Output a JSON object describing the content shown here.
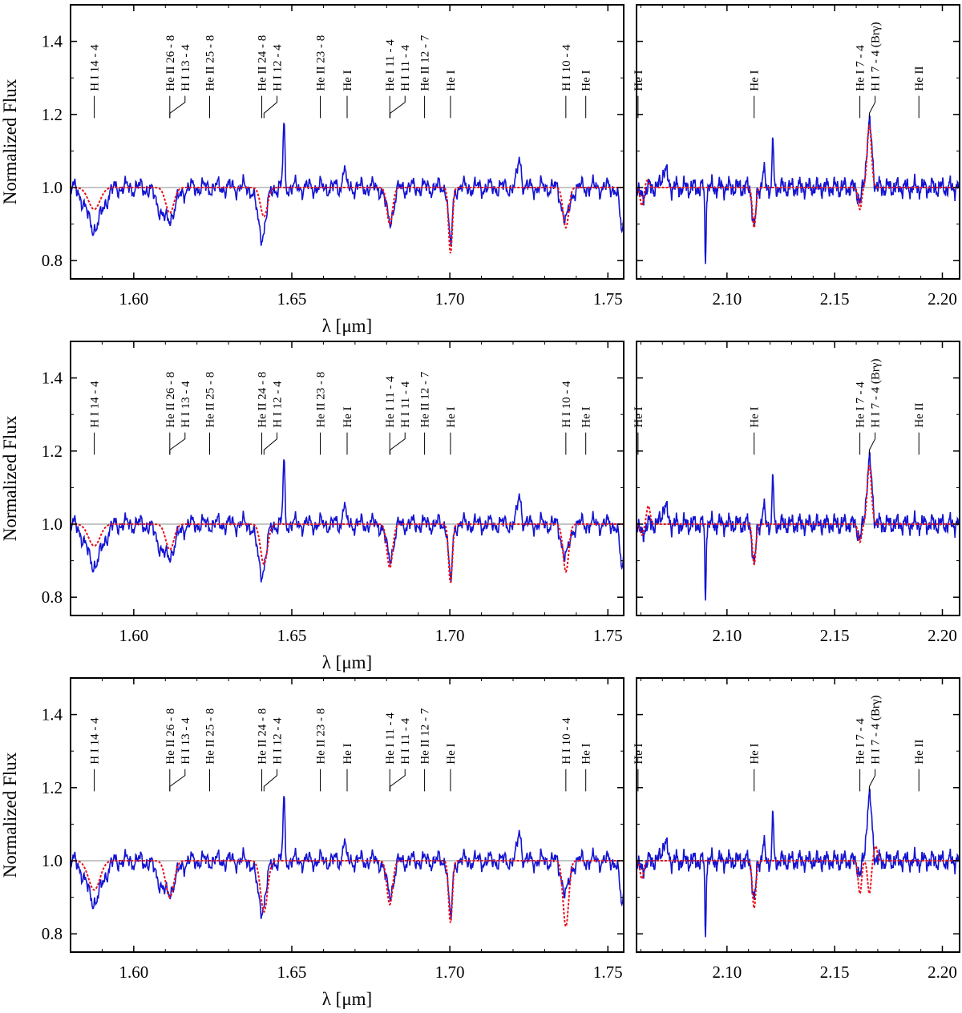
{
  "colors": {
    "observed": "#1414d2",
    "model": "#e8141e",
    "frame": "#000000",
    "reference": "#8c8c8c"
  },
  "axis_titles": {
    "ylabel": "Normalized Flux",
    "xlabel": "λ [μm]"
  },
  "line_labels_h": [
    {
      "x": 1.5875,
      "text": "H I 14 - 4"
    },
    {
      "x": 1.6114,
      "text": "He II 26 - 8"
    },
    {
      "x": 1.6114,
      "text": "H I 13 - 4"
    },
    {
      "x": 1.624,
      "text": "He II 25 - 8"
    },
    {
      "x": 1.6405,
      "text": "He II 24 - 8"
    },
    {
      "x": 1.6412,
      "text": "H I 12 - 4"
    },
    {
      "x": 1.659,
      "text": "He II 23 - 8"
    },
    {
      "x": 1.6675,
      "text": "He I"
    },
    {
      "x": 1.681,
      "text": "He I 11 - 4"
    },
    {
      "x": 1.6811,
      "text": "H I 11 - 4"
    },
    {
      "x": 1.692,
      "text": "He II 12 - 7"
    },
    {
      "x": 1.7002,
      "text": "He I"
    },
    {
      "x": 1.7367,
      "text": "H I 10 - 4"
    },
    {
      "x": 1.743,
      "text": "He I"
    }
  ],
  "line_labels_k": [
    {
      "x": 2.0587,
      "text": "He I"
    },
    {
      "x": 2.1126,
      "text": "He I"
    },
    {
      "x": 2.1617,
      "text": "He I 7 - 4"
    },
    {
      "x": 2.1661,
      "text": "H I 7 - 4 (Brγ)"
    },
    {
      "x": 2.1891,
      "text": "He II"
    }
  ],
  "chart_data": [
    {
      "type": "line",
      "panel": "top-left",
      "band": "H",
      "xlabel": "λ [μm]",
      "ylabel": "Normalized Flux",
      "xlim": [
        1.58,
        1.755
      ],
      "ylim": [
        0.75,
        1.5
      ],
      "xticks": [
        "1.60",
        "1.65",
        "1.70",
        "1.75"
      ],
      "yticks": [
        "0.8",
        "1.0",
        "1.2",
        "1.4"
      ],
      "reference_y": 1.0,
      "observed_features": [
        {
          "x": 1.5875,
          "depth": -0.11,
          "width": 0.0025
        },
        {
          "x": 1.6105,
          "depth": -0.09,
          "width": 0.0025
        },
        {
          "x": 1.6405,
          "depth": -0.13,
          "width": 0.0014
        },
        {
          "x": 1.6475,
          "depth": 0.17,
          "width": 0.0003
        },
        {
          "x": 1.6665,
          "depth": 0.06,
          "width": 0.0004
        },
        {
          "x": 1.681,
          "depth": -0.09,
          "width": 0.0012
        },
        {
          "x": 1.7002,
          "depth": -0.16,
          "width": 0.0006
        },
        {
          "x": 1.722,
          "depth": 0.08,
          "width": 0.0006
        },
        {
          "x": 1.7367,
          "depth": -0.09,
          "width": 0.0012
        },
        {
          "x": 1.7545,
          "depth": -0.12,
          "width": 0.0008
        }
      ],
      "model_features": [
        {
          "x": 1.5875,
          "depth": -0.06,
          "width": 0.0018
        },
        {
          "x": 1.6114,
          "depth": -0.07,
          "width": 0.0013
        },
        {
          "x": 1.6412,
          "depth": -0.08,
          "width": 0.0011
        },
        {
          "x": 1.681,
          "depth": -0.1,
          "width": 0.0009
        },
        {
          "x": 1.7002,
          "depth": -0.18,
          "width": 0.0006
        },
        {
          "x": 1.7367,
          "depth": -0.11,
          "width": 0.0009
        }
      ]
    },
    {
      "type": "line",
      "panel": "top-right",
      "band": "K",
      "xlabel": "",
      "ylabel": "",
      "xlim": [
        2.058,
        2.208
      ],
      "ylim": [
        0.75,
        1.5
      ],
      "xticks": [
        "2.10",
        "2.15",
        "2.20"
      ],
      "reference_y": 1.0,
      "observed_features": [
        {
          "x": 2.0605,
          "depth": -0.03,
          "width": 0.001
        },
        {
          "x": 2.071,
          "depth": 0.05,
          "width": 0.0012
        },
        {
          "x": 2.09,
          "depth": -0.2,
          "width": 0.0003
        },
        {
          "x": 2.1126,
          "depth": -0.11,
          "width": 0.0008
        },
        {
          "x": 2.117,
          "depth": 0.04,
          "width": 0.0006
        },
        {
          "x": 2.1213,
          "depth": 0.14,
          "width": 0.0003
        },
        {
          "x": 2.1617,
          "depth": -0.04,
          "width": 0.0008
        },
        {
          "x": 2.1661,
          "depth": 0.17,
          "width": 0.0012
        }
      ],
      "model_features": [
        {
          "x": 2.0605,
          "depth": -0.05,
          "width": 0.0008
        },
        {
          "x": 2.063,
          "depth": 0.02,
          "width": 0.0008
        },
        {
          "x": 2.1126,
          "depth": -0.11,
          "width": 0.0008
        },
        {
          "x": 2.1617,
          "depth": -0.06,
          "width": 0.0008
        },
        {
          "x": 2.1661,
          "depth": 0.17,
          "width": 0.001
        }
      ]
    },
    {
      "type": "line",
      "panel": "middle-left",
      "band": "H",
      "xlabel": "λ [μm]",
      "ylabel": "Normalized Flux",
      "xlim": [
        1.58,
        1.755
      ],
      "ylim": [
        0.75,
        1.5
      ],
      "xticks": [
        "1.60",
        "1.65",
        "1.70",
        "1.75"
      ],
      "yticks": [
        "0.8",
        "1.0",
        "1.2",
        "1.4"
      ],
      "reference_y": 1.0,
      "observed_features": [
        {
          "x": 1.5875,
          "depth": -0.11,
          "width": 0.0025
        },
        {
          "x": 1.6105,
          "depth": -0.09,
          "width": 0.0025
        },
        {
          "x": 1.6405,
          "depth": -0.13,
          "width": 0.0014
        },
        {
          "x": 1.6475,
          "depth": 0.17,
          "width": 0.0003
        },
        {
          "x": 1.6665,
          "depth": 0.06,
          "width": 0.0004
        },
        {
          "x": 1.681,
          "depth": -0.09,
          "width": 0.0012
        },
        {
          "x": 1.7002,
          "depth": -0.16,
          "width": 0.0006
        },
        {
          "x": 1.722,
          "depth": 0.08,
          "width": 0.0006
        },
        {
          "x": 1.7367,
          "depth": -0.09,
          "width": 0.0012
        },
        {
          "x": 1.7545,
          "depth": -0.12,
          "width": 0.0008
        }
      ],
      "model_features": [
        {
          "x": 1.5875,
          "depth": -0.06,
          "width": 0.0018
        },
        {
          "x": 1.6114,
          "depth": -0.07,
          "width": 0.0013
        },
        {
          "x": 1.6412,
          "depth": -0.11,
          "width": 0.0011
        },
        {
          "x": 1.681,
          "depth": -0.12,
          "width": 0.0009
        },
        {
          "x": 1.7002,
          "depth": -0.16,
          "width": 0.0006
        },
        {
          "x": 1.7367,
          "depth": -0.13,
          "width": 0.0009
        }
      ]
    },
    {
      "type": "line",
      "panel": "middle-right",
      "band": "K",
      "xlabel": "",
      "ylabel": "",
      "xlim": [
        2.058,
        2.208
      ],
      "ylim": [
        0.75,
        1.5
      ],
      "xticks": [
        "2.10",
        "2.15",
        "2.20"
      ],
      "reference_y": 1.0,
      "observed_features": [
        {
          "x": 2.0605,
          "depth": -0.03,
          "width": 0.001
        },
        {
          "x": 2.071,
          "depth": 0.05,
          "width": 0.0012
        },
        {
          "x": 2.09,
          "depth": -0.2,
          "width": 0.0003
        },
        {
          "x": 2.1126,
          "depth": -0.11,
          "width": 0.0008
        },
        {
          "x": 2.117,
          "depth": 0.04,
          "width": 0.0006
        },
        {
          "x": 2.1213,
          "depth": 0.14,
          "width": 0.0003
        },
        {
          "x": 2.1617,
          "depth": -0.04,
          "width": 0.0008
        },
        {
          "x": 2.1661,
          "depth": 0.17,
          "width": 0.0012
        }
      ],
      "model_features": [
        {
          "x": 2.0605,
          "depth": -0.03,
          "width": 0.0008
        },
        {
          "x": 2.0635,
          "depth": 0.05,
          "width": 0.0008
        },
        {
          "x": 2.1126,
          "depth": -0.11,
          "width": 0.0008
        },
        {
          "x": 2.1617,
          "depth": -0.05,
          "width": 0.0008
        },
        {
          "x": 2.1661,
          "depth": 0.16,
          "width": 0.001
        }
      ]
    },
    {
      "type": "line",
      "panel": "bottom-left",
      "band": "H",
      "xlabel": "λ [μm]",
      "ylabel": "Normalized Flux",
      "xlim": [
        1.58,
        1.755
      ],
      "ylim": [
        0.75,
        1.5
      ],
      "xticks": [
        "1.60",
        "1.65",
        "1.70",
        "1.75"
      ],
      "yticks": [
        "0.8",
        "1.0",
        "1.2",
        "1.4"
      ],
      "reference_y": 1.0,
      "observed_features": [
        {
          "x": 1.5875,
          "depth": -0.11,
          "width": 0.0025
        },
        {
          "x": 1.6105,
          "depth": -0.09,
          "width": 0.0025
        },
        {
          "x": 1.6405,
          "depth": -0.13,
          "width": 0.0014
        },
        {
          "x": 1.6475,
          "depth": 0.17,
          "width": 0.0003
        },
        {
          "x": 1.6665,
          "depth": 0.06,
          "width": 0.0004
        },
        {
          "x": 1.681,
          "depth": -0.09,
          "width": 0.0012
        },
        {
          "x": 1.7002,
          "depth": -0.16,
          "width": 0.0006
        },
        {
          "x": 1.722,
          "depth": 0.08,
          "width": 0.0006
        },
        {
          "x": 1.7367,
          "depth": -0.09,
          "width": 0.0012
        },
        {
          "x": 1.7545,
          "depth": -0.12,
          "width": 0.0008
        }
      ],
      "model_features": [
        {
          "x": 1.5875,
          "depth": -0.08,
          "width": 0.0018
        },
        {
          "x": 1.6114,
          "depth": -0.1,
          "width": 0.0013
        },
        {
          "x": 1.6412,
          "depth": -0.14,
          "width": 0.0011
        },
        {
          "x": 1.681,
          "depth": -0.12,
          "width": 0.0009
        },
        {
          "x": 1.7002,
          "depth": -0.17,
          "width": 0.0006
        },
        {
          "x": 1.7367,
          "depth": -0.18,
          "width": 0.0009
        }
      ]
    },
    {
      "type": "line",
      "panel": "bottom-right",
      "band": "K",
      "xlabel": "",
      "ylabel": "",
      "xlim": [
        2.058,
        2.208
      ],
      "ylim": [
        0.75,
        1.5
      ],
      "xticks": [
        "2.10",
        "2.15",
        "2.20"
      ],
      "reference_y": 1.0,
      "observed_features": [
        {
          "x": 2.0605,
          "depth": -0.03,
          "width": 0.001
        },
        {
          "x": 2.071,
          "depth": 0.05,
          "width": 0.0012
        },
        {
          "x": 2.09,
          "depth": -0.2,
          "width": 0.0003
        },
        {
          "x": 2.1126,
          "depth": -0.11,
          "width": 0.0008
        },
        {
          "x": 2.117,
          "depth": 0.04,
          "width": 0.0006
        },
        {
          "x": 2.1213,
          "depth": 0.14,
          "width": 0.0003
        },
        {
          "x": 2.1617,
          "depth": -0.04,
          "width": 0.0008
        },
        {
          "x": 2.1661,
          "depth": 0.17,
          "width": 0.0012
        }
      ],
      "model_features": [
        {
          "x": 2.0605,
          "depth": -0.05,
          "width": 0.0008
        },
        {
          "x": 2.1126,
          "depth": -0.13,
          "width": 0.0008
        },
        {
          "x": 2.1617,
          "depth": -0.09,
          "width": 0.0008
        },
        {
          "x": 2.1661,
          "depth": -0.09,
          "width": 0.0008
        },
        {
          "x": 2.169,
          "depth": 0.04,
          "width": 0.0008
        }
      ]
    }
  ]
}
